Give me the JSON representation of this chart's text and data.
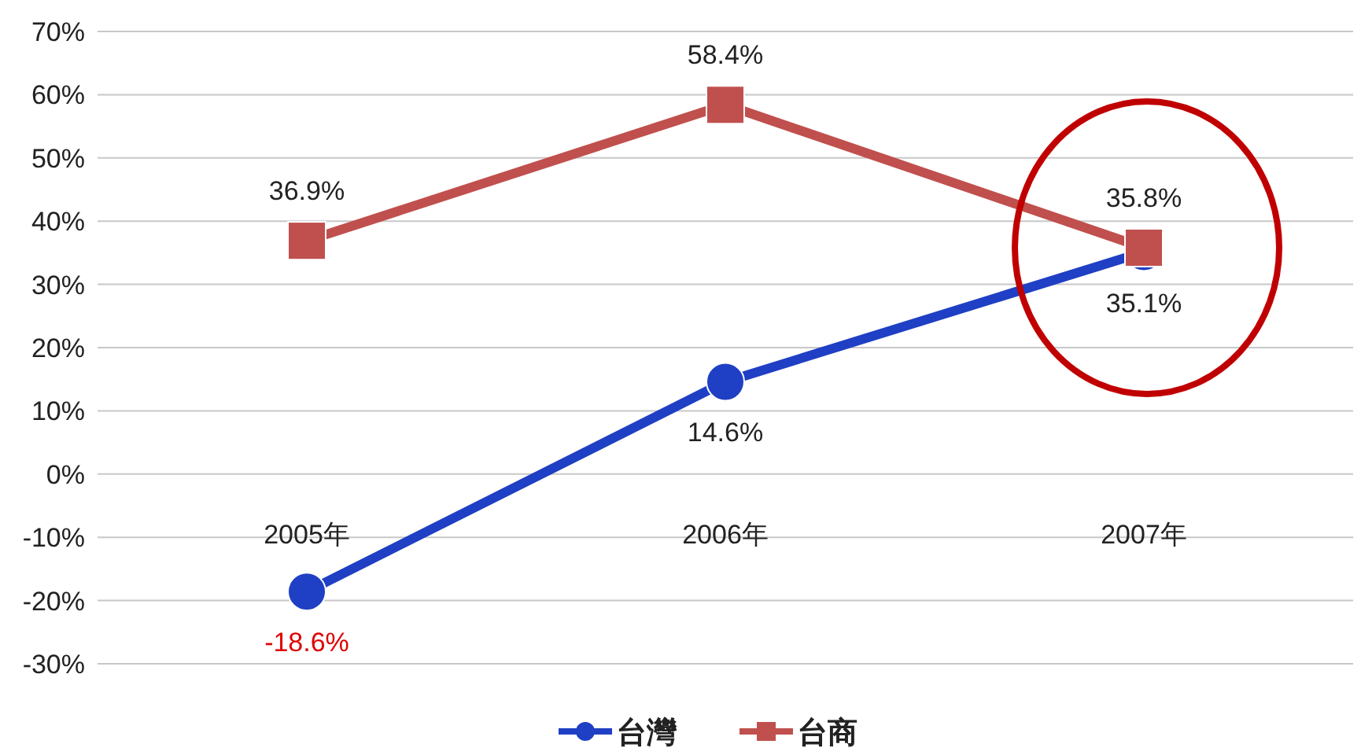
{
  "chart_data": {
    "type": "line",
    "categories": [
      "2005年",
      "2006年",
      "2007年"
    ],
    "series": [
      {
        "name": "台灣",
        "color": "#1f3fc4",
        "marker": "circle",
        "values": [
          -18.6,
          14.6,
          35.1
        ],
        "value_labels": [
          "-18.6%",
          "14.6%",
          "35.1%"
        ]
      },
      {
        "name": "台商",
        "color": "#c0504d",
        "marker": "square",
        "values": [
          36.9,
          58.4,
          35.8
        ],
        "value_labels": [
          "36.9%",
          "58.4%",
          "35.8%"
        ]
      }
    ],
    "ylim": [
      -30,
      70
    ],
    "yticks": [
      {
        "value": -30,
        "label": "-30%"
      },
      {
        "value": -20,
        "label": "-20%"
      },
      {
        "value": -10,
        "label": "-10%"
      },
      {
        "value": 0,
        "label": "0%"
      },
      {
        "value": 10,
        "label": "10%"
      },
      {
        "value": 20,
        "label": "20%"
      },
      {
        "value": 30,
        "label": "30%"
      },
      {
        "value": 40,
        "label": "40%"
      },
      {
        "value": 50,
        "label": "50%"
      },
      {
        "value": 60,
        "label": "60%"
      },
      {
        "value": 70,
        "label": "70%"
      }
    ],
    "grid": "y",
    "legend": "bottom"
  }
}
